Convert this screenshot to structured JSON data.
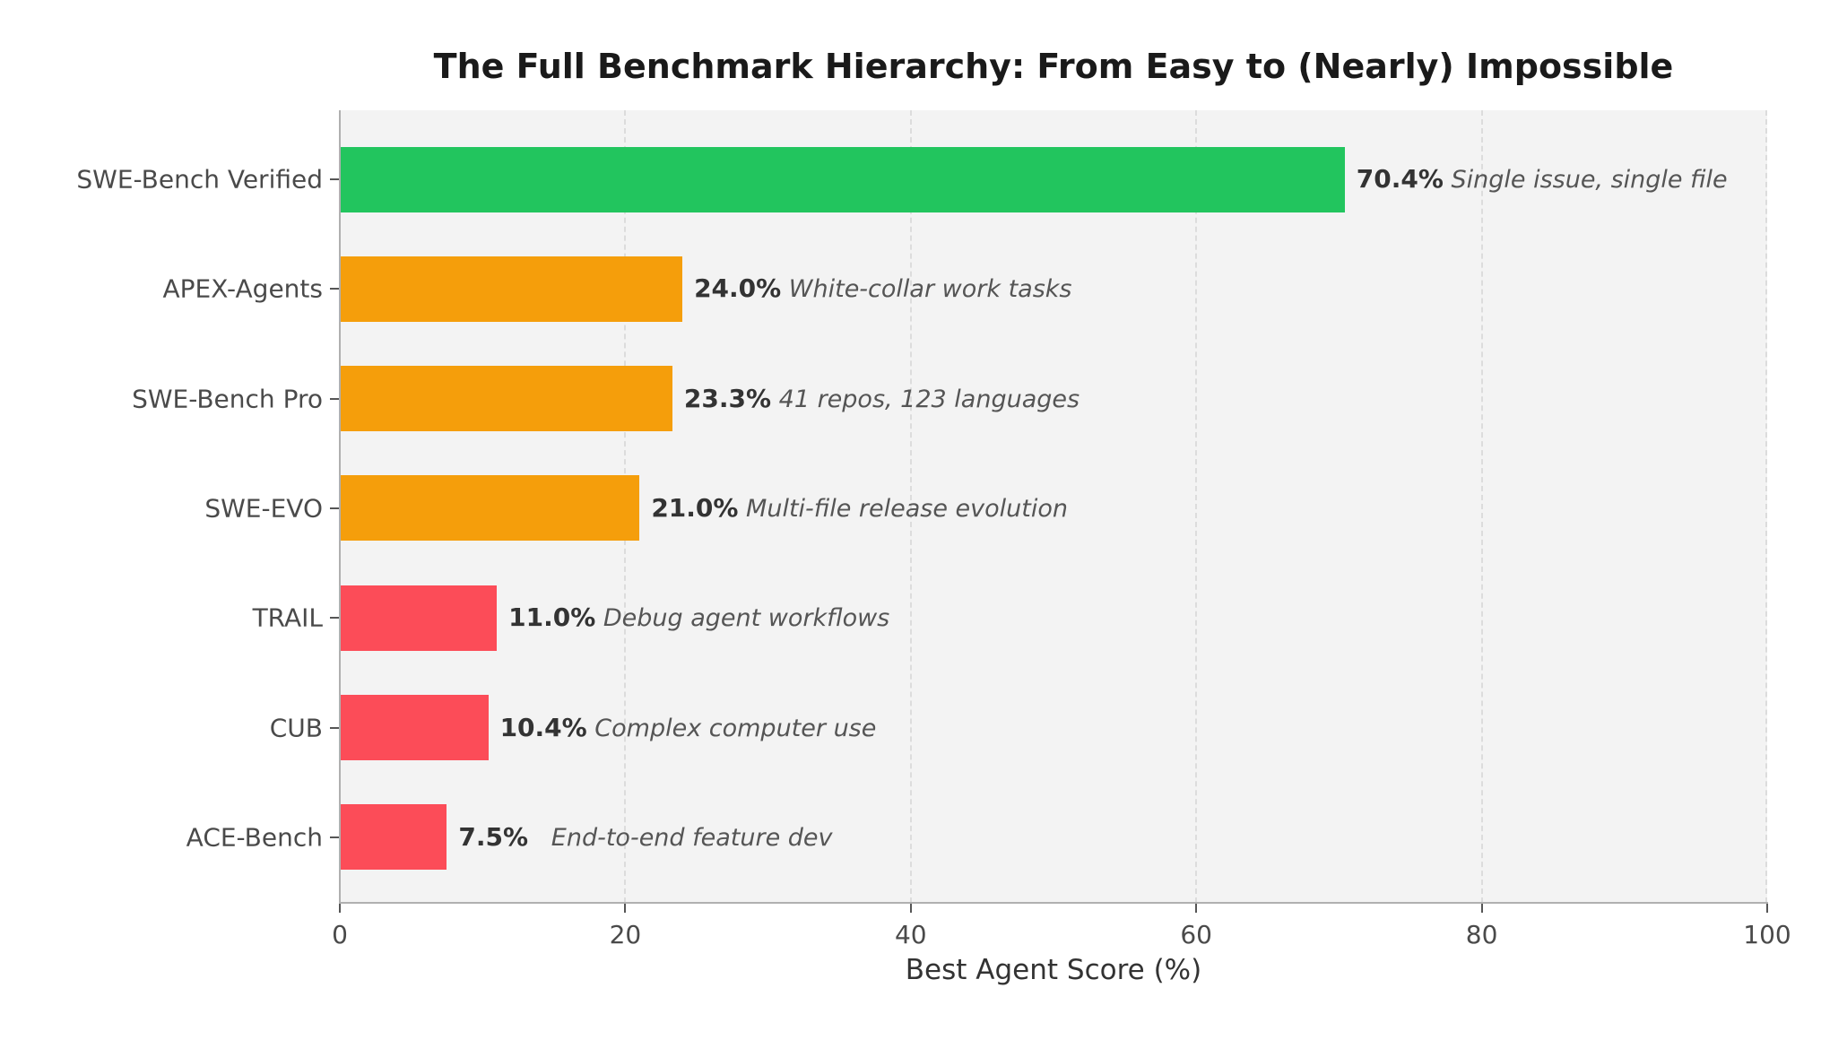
{
  "chart_data": {
    "type": "bar",
    "orientation": "horizontal",
    "title": "The Full Benchmark Hierarchy: From Easy to (Nearly) Impossible",
    "xlabel": "Best Agent Score (%)",
    "ylabel": "",
    "xlim": [
      0,
      100
    ],
    "xticks": [
      0,
      20,
      40,
      60,
      80,
      100
    ],
    "grid": "x, dashed",
    "legend": null,
    "categories": [
      "SWE-Bench Verified",
      "APEX-Agents",
      "SWE-Bench Pro",
      "SWE-EVO",
      "TRAIL",
      "CUB",
      "ACE-Bench"
    ],
    "values": [
      70.4,
      24.0,
      23.3,
      21.0,
      11.0,
      10.4,
      7.5
    ],
    "value_labels": [
      "70.4%",
      "24.0%",
      "23.3%",
      "21.0%",
      "11.0%",
      "10.4%",
      "7.5%"
    ],
    "annotations": [
      "Single issue, single file",
      "White-collar work tasks",
      "41 repos, 123 languages",
      "Multi-file release evolution",
      "Debug agent workflows",
      "Complex computer use",
      "End-to-end feature dev"
    ],
    "colors": [
      "#22c55e",
      "#f59e0b",
      "#f59e0b",
      "#f59e0b",
      "#fc4c58",
      "#fc4c58",
      "#fc4c58"
    ]
  },
  "style": {
    "plot_background": "#f3f3f3",
    "green": "#22c55e",
    "orange": "#f59e0b",
    "red": "#fc4c58"
  }
}
